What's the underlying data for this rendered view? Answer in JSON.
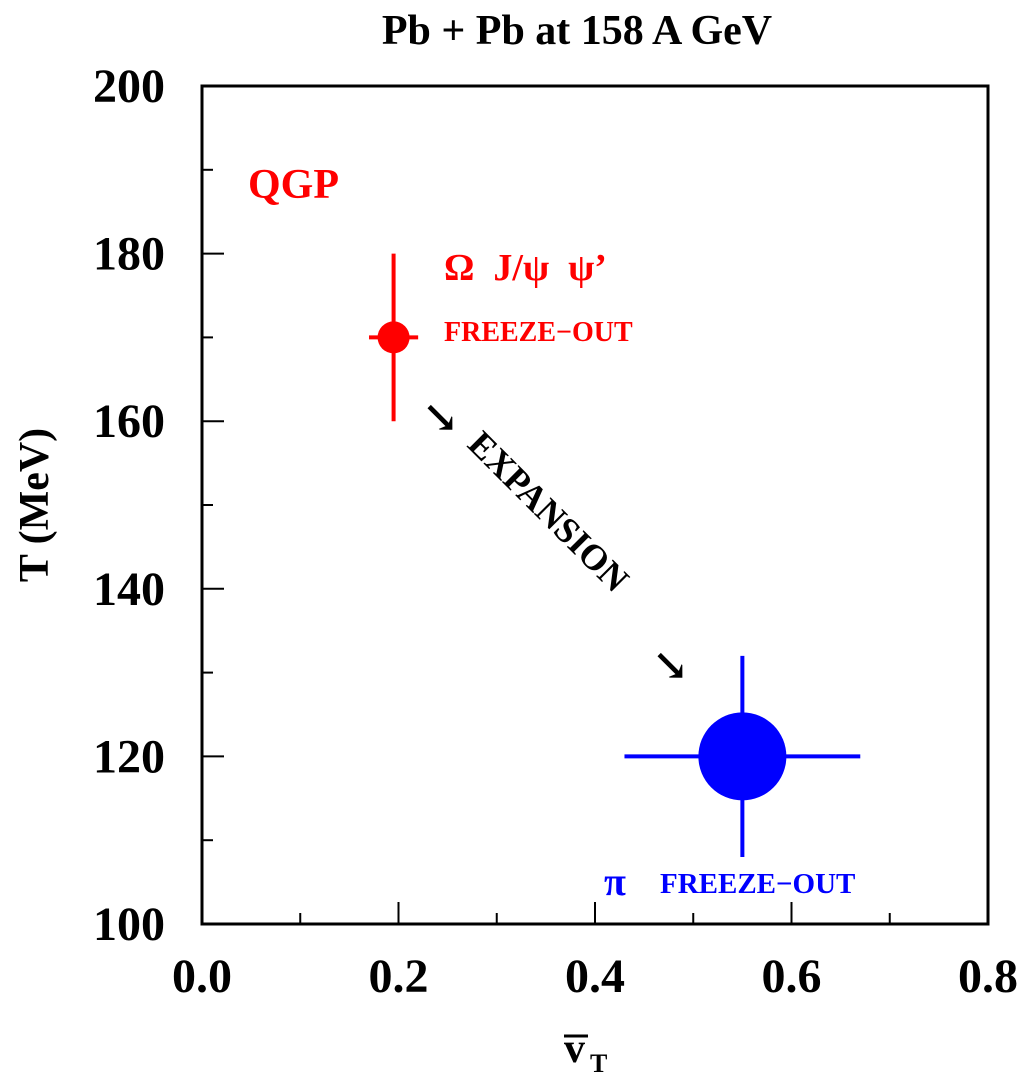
{
  "chart_data": {
    "type": "scatter",
    "title": "Pb + Pb at 158 A GeV",
    "xlabel_main": "v",
    "xlabel_sub": "T",
    "ylabel": "T (MeV)",
    "xlim": [
      0.0,
      0.8
    ],
    "ylim": [
      100,
      200
    ],
    "x_ticks": [
      0.0,
      0.2,
      0.4,
      0.6,
      0.8
    ],
    "x_tick_labels": [
      "0.0",
      "0.2",
      "0.4",
      "0.6",
      "0.8"
    ],
    "y_ticks": [
      100,
      120,
      140,
      160,
      180,
      200
    ],
    "y_tick_labels": [
      "100",
      "120",
      "140",
      "160",
      "180",
      "200"
    ],
    "grid": false,
    "points": [
      {
        "x": 0.195,
        "y": 170,
        "x_err": 0.025,
        "y_err": 10,
        "color": "#ff0000",
        "size": "small"
      },
      {
        "x": 0.55,
        "y": 120,
        "x_err": 0.12,
        "y_err": 12,
        "color": "#0000ff",
        "size": "large"
      }
    ],
    "annotations": {
      "qgp": "QGP",
      "omega_label": "Ω  J/ψ  ψ’",
      "red_freezeout": "FREEZE−OUT",
      "expansion": "EXPANSION",
      "arrow_glyph": "↘",
      "pi_symbol": "π",
      "blue_freezeout": "FREEZE−OUT"
    },
    "colors": {
      "red": "#ff0000",
      "blue": "#0000ff",
      "axis": "#000000"
    }
  }
}
